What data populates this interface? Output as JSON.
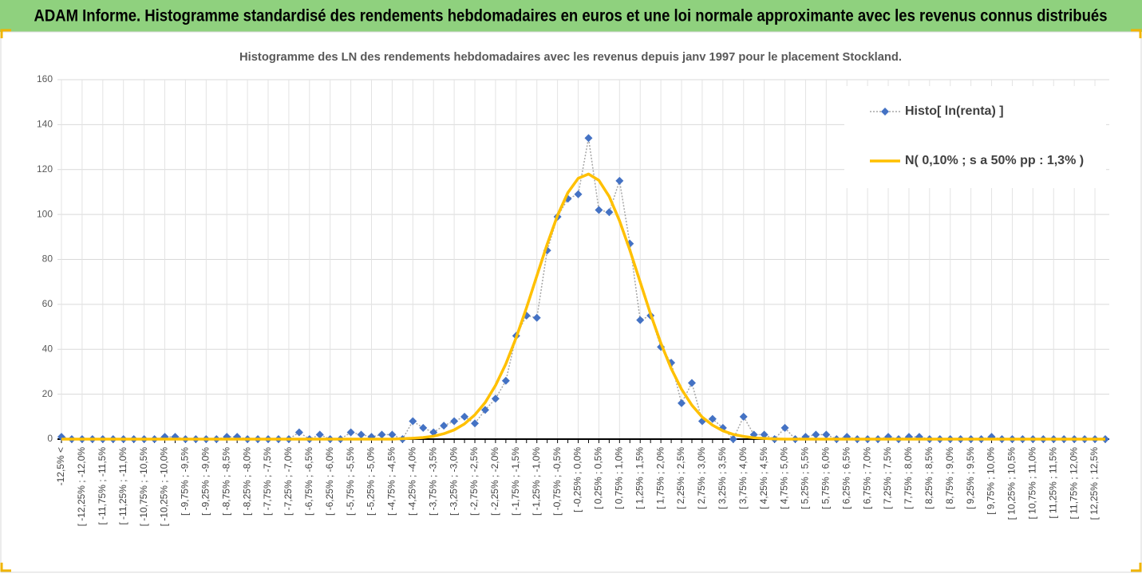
{
  "page_title": "ADAM Informe. Histogramme standardisé des rendements hebdomadaires en euros et une loi normale approximante avec les revenus connus distribués",
  "chart_data": {
    "type": "line",
    "title": "Histogramme des LN des rendements hebdomadaires avec les revenus depuis janv 1997 pour le placement Stockland.",
    "categories": [
      "-12,5% <",
      null,
      "[ -12,25% ; -12,0%",
      null,
      "[ -11,75% ; -11,5%",
      null,
      "[ -11,25% ; -11,0%",
      null,
      "[ -10,75% ; -10,5%",
      null,
      "[ -10,25% ; -10,0%",
      null,
      "[ -9,75% ; -9,5%",
      null,
      "[ -9,25% ; -9,0%",
      null,
      "[ -8,75% ; -8,5%",
      null,
      "[ -8,25% ; -8,0%",
      null,
      "[ -7,75% ; -7,5%",
      null,
      "[ -7,25% ; -7,0%",
      null,
      "[ -6,75% ; -6,5%",
      null,
      "[ -6,25% ; -6,0%",
      null,
      "[ -5,75% ; -5,5%",
      null,
      "[ -5,25% ; -5,0%",
      null,
      "[ -4,75% ; -4,5%",
      null,
      "[ -4,25% ; -4,0%",
      null,
      "[ -3,75% ; -3,5%",
      null,
      "[ -3,25% ; -3,0%",
      null,
      "[ -2,75% ; -2,5%",
      null,
      "[ -2,25% ; -2,0%",
      null,
      "[ -1,75% ; -1,5%",
      null,
      "[ -1,25% ; -1,0%",
      null,
      "[ -0,75% ; -0,5%",
      null,
      "[ -0,25% ; 0,0%",
      null,
      "[ 0,25% ; 0,5%",
      null,
      "[ 0,75% ; 1,0%",
      null,
      "[ 1,25% ; 1,5%",
      null,
      "[ 1,75% ; 2,0%",
      null,
      "[ 2,25% ; 2,5%",
      null,
      "[ 2,75% ; 3,0%",
      null,
      "[ 3,25% ; 3,5%",
      null,
      "[ 3,75% ; 4,0%",
      null,
      "[ 4,25% ; 4,5%",
      null,
      "[ 4,75% ; 5,0%",
      null,
      "[ 5,25% ; 5,5%",
      null,
      "[ 5,75% ; 6,0%",
      null,
      "[ 6,25% ; 6,5%",
      null,
      "[ 6,75% ; 7,0%",
      null,
      "[ 7,25% ; 7,5%",
      null,
      "[ 7,75% ; 8,0%",
      null,
      "[ 8,25% ; 8,5%",
      null,
      "[ 8,75% ; 9,0%",
      null,
      "[ 9,25% ; 9,5%",
      null,
      "[ 9,75% ; 10,0%",
      null,
      "[ 10,25% ; 10,5%",
      null,
      "[ 10,75% ; 11,0%",
      null,
      "[ 11,25% ; 11,5%",
      null,
      "[ 11,75% ; 12,0%",
      null,
      "[ 12,25% ; 12,5%",
      null
    ],
    "series": [
      {
        "name": "Histo[ ln(renta) ]",
        "color": "#4472c4",
        "values": [
          1,
          0,
          0,
          0,
          0,
          0,
          0,
          0,
          0,
          0,
          1,
          1,
          0,
          0,
          0,
          0,
          1,
          1,
          0,
          0,
          0,
          0,
          0,
          3,
          0,
          2,
          0,
          0,
          3,
          2,
          1,
          2,
          2,
          0,
          8,
          5,
          3,
          6,
          8,
          10,
          7,
          13,
          18,
          26,
          46,
          55,
          54,
          84,
          99,
          107,
          109,
          134,
          102,
          101,
          115,
          87,
          53,
          55,
          41,
          34,
          16,
          25,
          8,
          9,
          5,
          0,
          10,
          2,
          2,
          0,
          5,
          0,
          1,
          2,
          2,
          0,
          1,
          0,
          0,
          0,
          1,
          0,
          1,
          1,
          0,
          0,
          0,
          0,
          0,
          0,
          1,
          0,
          0,
          0,
          0,
          0,
          0,
          0,
          0,
          0,
          0,
          0
        ]
      },
      {
        "name": "N( 0,10% ; s a 50% pp : 1,3% )",
        "color": "#ffc000",
        "values": [
          0,
          0,
          0,
          0,
          0,
          0,
          0,
          0,
          0,
          0,
          0,
          0,
          0,
          0,
          0,
          0,
          0,
          0,
          0,
          0,
          0,
          0,
          0,
          0,
          0,
          0,
          0,
          0,
          0,
          0,
          0,
          0,
          0,
          0.2,
          0.4,
          0.7,
          1.3,
          2.4,
          4.1,
          6.8,
          10.8,
          16.3,
          23.9,
          33.5,
          45.2,
          58.5,
          72.7,
          86.8,
          99.6,
          109.7,
          116.1,
          118,
          115.2,
          108,
          97.2,
          84.1,
          69.9,
          55.7,
          42.7,
          31.4,
          22.2,
          15.1,
          9.8,
          6.2,
          3.7,
          2.1,
          1.2,
          0.6,
          0.3,
          0.1,
          0,
          0,
          0,
          0,
          0,
          0,
          0,
          0,
          0,
          0,
          0,
          0,
          0,
          0,
          0,
          0,
          0,
          0,
          0,
          0,
          0,
          0,
          0,
          0,
          0,
          0,
          0,
          0,
          0,
          0,
          0,
          0
        ]
      }
    ],
    "ylim": [
      0,
      160
    ],
    "yticks": [
      0,
      20,
      40,
      60,
      80,
      100,
      120,
      140,
      160
    ],
    "grid": true,
    "legend": "top-right"
  }
}
